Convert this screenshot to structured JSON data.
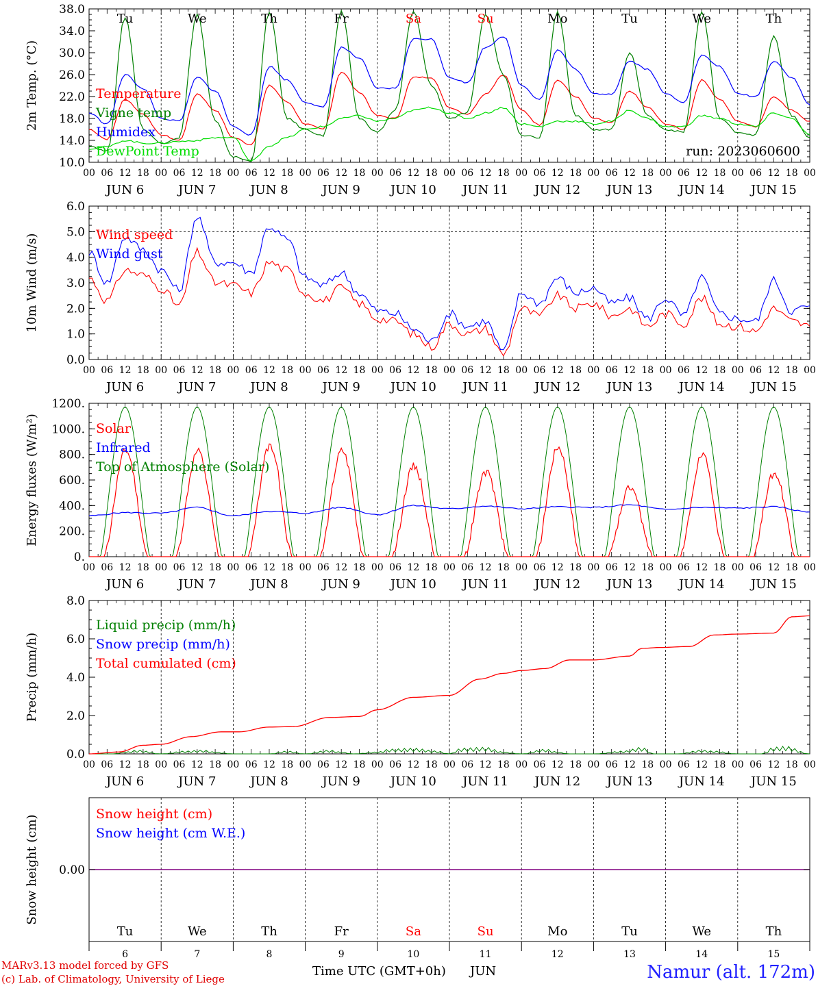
{
  "run_label": "run: 2023060600",
  "hour_ticks": [
    "00",
    "06",
    "12",
    "18"
  ],
  "dates": [
    "JUN  6",
    "JUN  7",
    "JUN  8",
    "JUN  9",
    "JUN 10",
    "JUN 11",
    "JUN 12",
    "JUN 13",
    "JUN 14",
    "JUN 15"
  ],
  "days": [
    {
      "name": "Tu",
      "weekend": false
    },
    {
      "name": "We",
      "weekend": false
    },
    {
      "name": "Th",
      "weekend": false
    },
    {
      "name": "Fr",
      "weekend": false
    },
    {
      "name": "Sa",
      "weekend": true
    },
    {
      "name": "Su",
      "weekend": true
    },
    {
      "name": "Mo",
      "weekend": false
    },
    {
      "name": "Tu",
      "weekend": false
    },
    {
      "name": "We",
      "weekend": false
    },
    {
      "name": "Th",
      "weekend": false
    }
  ],
  "bottom_day_numbers": [
    "6",
    "7",
    "8",
    "9",
    "10",
    "11",
    "12",
    "13",
    "14",
    "15"
  ],
  "colors": {
    "red": "#ff0000",
    "blue": "#0000ff",
    "green": "#008000",
    "lightgreen": "#00dd00",
    "purple": "#800080"
  },
  "footer": {
    "model": "MARv3.13 model forced by GFS",
    "copyright": "(c) Lab. of Climatology, University of Liege",
    "axis_title": "Time UTC (GMT+0h)",
    "month": "JUN",
    "station": "Namur (alt. 172m)"
  },
  "chart_data": [
    {
      "type": "line",
      "ylabel": "2m Temp. (°C)",
      "ylim": [
        10,
        38
      ],
      "yticks": [
        "10.0",
        "14.0",
        "18.0",
        "22.0",
        "26.0",
        "30.0",
        "34.0",
        "38.0"
      ],
      "legend": [
        "Temperature",
        "Vigne temp",
        "Humidex",
        "DewPoint Temp"
      ],
      "series": [
        {
          "name": "Temperature",
          "color": "red",
          "x": [
            0,
            6,
            12,
            18,
            24,
            30,
            36,
            42,
            48,
            54,
            60,
            66,
            72,
            78,
            84,
            90,
            96,
            102,
            108,
            114,
            120,
            126,
            132,
            138,
            144,
            150,
            156,
            162,
            168,
            174,
            180,
            186,
            192,
            198,
            204,
            210,
            216,
            222,
            228,
            234,
            240
          ],
          "values": [
            16.0,
            14.2,
            21.5,
            18.8,
            15.0,
            14.0,
            22.5,
            19.5,
            14.5,
            13.2,
            24.0,
            21.0,
            17.0,
            16.0,
            26.5,
            22.8,
            18.5,
            18.0,
            25.5,
            25.5,
            20.0,
            18.8,
            22.5,
            26.0,
            19.5,
            16.8,
            25.0,
            22.0,
            18.0,
            17.2,
            23.0,
            20.0,
            17.0,
            16.0,
            25.0,
            21.5,
            17.5,
            16.5,
            22.0,
            19.5,
            17.5
          ]
        },
        {
          "name": "Vigne temp",
          "color": "green",
          "x": [
            0,
            6,
            12,
            18,
            24,
            30,
            36,
            42,
            48,
            54,
            60,
            66,
            72,
            78,
            84,
            90,
            96,
            102,
            108,
            114,
            120,
            126,
            132,
            138,
            144,
            150,
            156,
            162,
            168,
            174,
            180,
            186,
            192,
            198,
            204,
            210,
            216,
            222,
            228,
            234,
            240
          ],
          "values": [
            13.0,
            12.0,
            36.5,
            16.0,
            13.5,
            14.5,
            37.0,
            17.5,
            11.0,
            10.2,
            37.5,
            18.0,
            16.0,
            14.8,
            37.5,
            18.0,
            15.5,
            19.5,
            37.5,
            24.0,
            18.0,
            19.0,
            37.0,
            26.0,
            15.0,
            14.5,
            37.5,
            18.5,
            16.0,
            16.0,
            30.0,
            18.5,
            16.0,
            15.5,
            37.5,
            18.0,
            15.5,
            15.0,
            33.0,
            18.5,
            14.5
          ]
        },
        {
          "name": "Humidex",
          "color": "blue",
          "x": [
            0,
            6,
            12,
            18,
            24,
            30,
            36,
            42,
            48,
            54,
            60,
            66,
            72,
            78,
            84,
            90,
            96,
            102,
            108,
            114,
            120,
            126,
            132,
            138,
            144,
            150,
            156,
            162,
            168,
            174,
            180,
            186,
            192,
            198,
            204,
            210,
            216,
            222,
            228,
            234,
            240
          ],
          "values": [
            19.0,
            17.0,
            26.0,
            23.5,
            18.0,
            17.5,
            25.5,
            23.0,
            16.5,
            15.0,
            27.5,
            25.0,
            21.0,
            20.0,
            31.0,
            29.0,
            23.5,
            23.5,
            32.5,
            32.5,
            25.5,
            24.5,
            31.0,
            33.0,
            24.0,
            21.5,
            30.5,
            27.0,
            22.5,
            22.5,
            28.5,
            27.0,
            22.5,
            21.0,
            29.5,
            27.5,
            22.5,
            22.0,
            28.5,
            25.5,
            20.5
          ]
        },
        {
          "name": "DewPoint Temp",
          "color": "lightgreen",
          "x": [
            0,
            6,
            12,
            18,
            24,
            30,
            36,
            42,
            48,
            54,
            60,
            66,
            72,
            78,
            84,
            90,
            96,
            102,
            108,
            114,
            120,
            126,
            132,
            138,
            144,
            150,
            156,
            162,
            168,
            174,
            180,
            186,
            192,
            198,
            204,
            210,
            216,
            222,
            228,
            234,
            240
          ],
          "values": [
            12.5,
            12.8,
            14.0,
            13.5,
            13.5,
            13.8,
            14.0,
            14.5,
            14.5,
            10.2,
            13.0,
            14.5,
            16.0,
            16.5,
            18.0,
            18.5,
            17.5,
            18.0,
            19.5,
            20.0,
            19.0,
            18.0,
            19.0,
            20.0,
            17.0,
            16.5,
            17.5,
            17.5,
            17.0,
            17.5,
            19.5,
            18.0,
            16.5,
            16.5,
            18.5,
            18.0,
            17.0,
            16.5,
            19.0,
            18.0,
            15.0
          ]
        }
      ]
    },
    {
      "type": "line",
      "ylabel": "10m Wind (m/s)",
      "ylim": [
        0,
        6
      ],
      "yticks": [
        "0.0",
        "1.0",
        "2.0",
        "3.0",
        "4.0",
        "5.0",
        "6.0"
      ],
      "dashed_y": 5.0,
      "legend": [
        "Wind speed",
        "Wind gust"
      ],
      "series": [
        {
          "name": "Wind speed",
          "color": "red",
          "x": [
            0,
            6,
            12,
            18,
            24,
            30,
            36,
            42,
            48,
            54,
            60,
            66,
            72,
            78,
            84,
            90,
            96,
            102,
            108,
            114,
            120,
            126,
            132,
            138,
            144,
            150,
            156,
            162,
            168,
            174,
            180,
            186,
            192,
            198,
            204,
            210,
            216,
            222,
            228,
            234,
            240
          ],
          "values": [
            3.2,
            2.3,
            3.5,
            3.3,
            2.8,
            2.1,
            4.2,
            3.0,
            2.9,
            2.6,
            3.8,
            3.5,
            2.6,
            2.3,
            2.8,
            2.2,
            1.6,
            1.5,
            1.0,
            0.5,
            1.4,
            1.0,
            1.2,
            0.2,
            2.0,
            1.7,
            2.5,
            2.0,
            2.2,
            1.7,
            2.0,
            1.3,
            1.8,
            1.4,
            2.4,
            1.4,
            1.3,
            1.1,
            2.0,
            1.5,
            1.3
          ]
        },
        {
          "name": "Wind gust",
          "color": "blue",
          "x": [
            0,
            6,
            12,
            18,
            24,
            30,
            36,
            42,
            48,
            54,
            60,
            66,
            72,
            78,
            84,
            90,
            96,
            102,
            108,
            114,
            120,
            126,
            132,
            138,
            144,
            150,
            156,
            162,
            168,
            174,
            180,
            186,
            192,
            198,
            204,
            210,
            216,
            222,
            228,
            234,
            240
          ],
          "values": [
            4.2,
            3.0,
            4.8,
            4.3,
            3.5,
            2.7,
            5.6,
            3.8,
            3.8,
            3.4,
            5.2,
            4.7,
            3.2,
            2.9,
            3.4,
            2.6,
            1.9,
            1.8,
            1.2,
            0.7,
            1.8,
            1.3,
            1.5,
            0.3,
            2.6,
            2.2,
            3.2,
            2.6,
            2.8,
            2.2,
            2.4,
            1.6,
            2.4,
            1.7,
            3.2,
            1.8,
            1.6,
            1.5,
            3.1,
            1.9,
            2.1
          ]
        }
      ]
    },
    {
      "type": "line",
      "ylabel": "Energy fluxes (W/m²)",
      "ylim": [
        0,
        1200
      ],
      "yticks": [
        "0.",
        "200.",
        "400.",
        "600.",
        "800.",
        "1000.",
        "1200."
      ],
      "legend": [
        "Solar",
        "Infrared",
        "Top of Atmosphere (Solar)"
      ],
      "toa_peak": 1170,
      "solar_peaks": [
        830,
        820,
        870,
        830,
        710,
        660,
        860,
        540,
        790,
        650
      ],
      "infrared": {
        "x": [
          0,
          12,
          24,
          36,
          48,
          60,
          72,
          84,
          96,
          108,
          120,
          132,
          144,
          156,
          168,
          180,
          192,
          204,
          216,
          228,
          240
        ],
        "values": [
          320,
          345,
          340,
          385,
          320,
          355,
          340,
          385,
          330,
          400,
          375,
          395,
          375,
          390,
          385,
          405,
          370,
          385,
          380,
          390,
          350
        ]
      },
      "series_names": {
        "solar": "Solar",
        "infrared": "Infrared",
        "toa": "Top of Atmosphere (Solar)"
      }
    },
    {
      "type": "line",
      "ylabel": "Precip (mm/h)",
      "ylim": [
        0,
        8
      ],
      "yticks": [
        "0.0",
        "2.0",
        "4.0",
        "6.0",
        "8.0"
      ],
      "legend": [
        "Liquid precip (mm/h)",
        "Snow precip (mm/h)",
        "Total cumulated (cm)"
      ],
      "series": [
        {
          "name": "Total cumulated (cm)",
          "color": "red",
          "x": [
            0,
            10,
            18,
            24,
            34,
            44,
            50,
            60,
            68,
            80,
            90,
            96,
            108,
            120,
            130,
            138,
            144,
            152,
            160,
            168,
            180,
            184,
            190,
            200,
            208,
            216,
            228,
            234,
            240
          ],
          "values": [
            0.0,
            0.1,
            0.45,
            0.5,
            0.9,
            1.15,
            1.15,
            1.4,
            1.42,
            1.9,
            1.95,
            2.3,
            2.95,
            3.05,
            3.9,
            4.2,
            4.35,
            4.45,
            4.9,
            4.9,
            5.1,
            5.5,
            5.55,
            5.6,
            6.2,
            6.25,
            6.3,
            7.15,
            7.2
          ]
        },
        {
          "name": "Liquid precip (mm/h)",
          "color": "green",
          "x": [
            0,
            8,
            12,
            16,
            24,
            32,
            38,
            42,
            48,
            60,
            66,
            72,
            80,
            84,
            88,
            96,
            100,
            108,
            116,
            120,
            124,
            132,
            138,
            144,
            152,
            156,
            160,
            168,
            178,
            184,
            188,
            196,
            204,
            208,
            216,
            224,
            228,
            232,
            240
          ],
          "values": [
            0,
            0,
            0.1,
            0.2,
            0,
            0.15,
            0.2,
            0.1,
            0,
            0,
            0.15,
            0,
            0.2,
            0.1,
            0,
            0.1,
            0.25,
            0.3,
            0.15,
            0,
            0.3,
            0.35,
            0.1,
            0,
            0.25,
            0.1,
            0,
            0,
            0.15,
            0.35,
            0,
            0,
            0.2,
            0.15,
            0,
            0,
            0.35,
            0.4,
            0
          ]
        }
      ]
    },
    {
      "type": "line",
      "ylabel": "Snow height (cm)",
      "ytick": "0.00",
      "legend": [
        "Snow height (cm)",
        "Snow height (cm W.E.)"
      ],
      "values": [
        0.0
      ]
    }
  ]
}
